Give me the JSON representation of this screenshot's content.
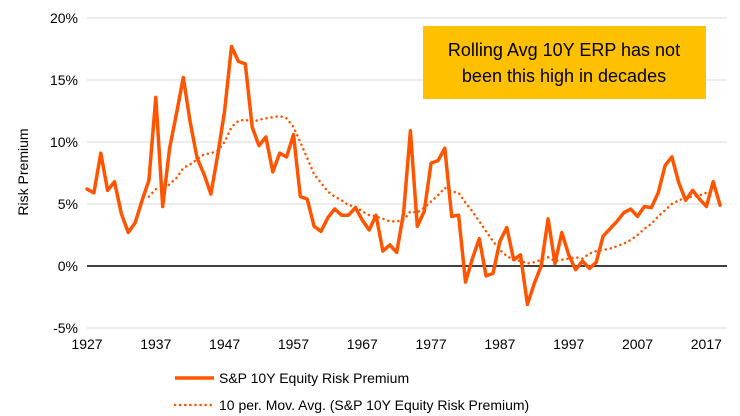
{
  "chart_data": {
    "type": "line",
    "ylabel": "Risk Premium",
    "ylim": [
      -5,
      20
    ],
    "yticks": [
      "20%",
      "15%",
      "10%",
      "5%",
      "0%",
      "-5%"
    ],
    "ytick_values": [
      20,
      15,
      10,
      5,
      0,
      -5
    ],
    "xlim": [
      1927,
      2020
    ],
    "xticks": [
      "1927",
      "1937",
      "1947",
      "1957",
      "1967",
      "1977",
      "1987",
      "1997",
      "2007",
      "2017"
    ],
    "xtick_values": [
      1927,
      1937,
      1947,
      1957,
      1967,
      1977,
      1987,
      1997,
      2007,
      2017
    ],
    "grid": "horizontal",
    "legend_position": "bottom",
    "callout": {
      "lines": [
        "Rolling Avg 10Y ERP has not",
        "been this high in decades"
      ],
      "background": "#FFC000"
    },
    "series": [
      {
        "name": "S&P 10Y Equity Risk Premium",
        "style": "solid",
        "color": "#FF5500",
        "x": [
          1927,
          1928,
          1929,
          1930,
          1931,
          1932,
          1933,
          1934,
          1935,
          1936,
          1937,
          1938,
          1939,
          1940,
          1941,
          1942,
          1943,
          1944,
          1945,
          1946,
          1947,
          1948,
          1949,
          1950,
          1951,
          1952,
          1953,
          1954,
          1955,
          1956,
          1957,
          1958,
          1959,
          1960,
          1961,
          1962,
          1963,
          1964,
          1965,
          1966,
          1967,
          1968,
          1969,
          1970,
          1971,
          1972,
          1973,
          1974,
          1975,
          1976,
          1977,
          1978,
          1979,
          1980,
          1981,
          1982,
          1983,
          1984,
          1985,
          1986,
          1987,
          1988,
          1989,
          1990,
          1991,
          1992,
          1993,
          1994,
          1995,
          1996,
          1997,
          1998,
          1999,
          2000,
          2001,
          2002,
          2003,
          2004,
          2005,
          2006,
          2007,
          2008,
          2009,
          2010,
          2011,
          2012,
          2013,
          2014,
          2015,
          2016,
          2017,
          2018,
          2019
        ],
        "y": [
          6.2,
          5.9,
          9.1,
          6.1,
          6.8,
          4.2,
          2.7,
          3.5,
          5.3,
          6.9,
          13.6,
          4.8,
          9.5,
          12.3,
          15.2,
          11.6,
          8.7,
          7.4,
          5.8,
          9.0,
          12.5,
          17.7,
          16.5,
          16.3,
          11.2,
          9.7,
          10.4,
          7.6,
          9.1,
          8.8,
          10.6,
          5.6,
          5.4,
          3.2,
          2.8,
          3.9,
          4.6,
          4.1,
          4.1,
          4.7,
          3.7,
          2.9,
          4.1,
          1.2,
          1.7,
          1.1,
          4.3,
          10.9,
          3.2,
          4.4,
          8.3,
          8.5,
          9.5,
          4.0,
          4.1,
          -1.3,
          0.6,
          2.2,
          -0.8,
          -0.6,
          2.0,
          3.1,
          0.5,
          0.9,
          -3.1,
          -1.4,
          0.0,
          3.8,
          0.2,
          2.7,
          0.9,
          -0.3,
          0.4,
          -0.2,
          0.3,
          2.4,
          3.0,
          3.6,
          4.3,
          4.6,
          4.0,
          4.8,
          4.7,
          5.9,
          8.1,
          8.8,
          6.7,
          5.3,
          6.1,
          5.4,
          4.8,
          6.8,
          4.9
        ]
      },
      {
        "name": "10 per. Mov. Avg. (S&P 10Y Equity Risk Premium)",
        "style": "dotted",
        "color": "#FF5500",
        "x": [
          1936,
          1937,
          1938,
          1939,
          1940,
          1941,
          1942,
          1943,
          1944,
          1945,
          1946,
          1947,
          1948,
          1949,
          1950,
          1951,
          1952,
          1953,
          1954,
          1955,
          1956,
          1957,
          1958,
          1959,
          1960,
          1961,
          1962,
          1963,
          1964,
          1965,
          1966,
          1967,
          1968,
          1969,
          1970,
          1971,
          1972,
          1973,
          1974,
          1975,
          1976,
          1977,
          1978,
          1979,
          1980,
          1981,
          1982,
          1983,
          1984,
          1985,
          1986,
          1987,
          1988,
          1989,
          1990,
          1991,
          1992,
          1993,
          1994,
          1995,
          1996,
          1997,
          1998,
          1999,
          2000,
          2001,
          2002,
          2003,
          2004,
          2005,
          2006,
          2007,
          2008,
          2009,
          2010,
          2011,
          2012,
          2013,
          2014,
          2015,
          2016,
          2017,
          2018,
          2019
        ],
        "y": [
          5.6,
          6.2,
          6.1,
          6.6,
          7.1,
          7.9,
          8.2,
          8.6,
          9.0,
          9.1,
          9.3,
          10.0,
          11.2,
          11.7,
          11.8,
          11.6,
          11.8,
          11.9,
          12.0,
          12.1,
          11.9,
          11.2,
          10.0,
          8.7,
          7.4,
          6.7,
          6.0,
          5.6,
          5.3,
          4.9,
          4.8,
          4.4,
          4.1,
          4.0,
          3.8,
          3.6,
          3.6,
          3.7,
          4.4,
          4.3,
          4.7,
          5.2,
          5.7,
          6.3,
          6.0,
          5.9,
          5.1,
          4.4,
          3.6,
          2.8,
          2.0,
          1.3,
          0.8,
          0.5,
          0.4,
          0.2,
          0.3,
          0.5,
          0.7,
          0.4,
          0.5,
          0.6,
          0.7,
          0.6,
          1.0,
          1.2,
          1.3,
          1.4,
          1.6,
          1.8,
          2.1,
          2.5,
          3.0,
          3.4,
          4.0,
          4.5,
          5.0,
          5.3,
          5.5,
          5.6,
          5.7,
          5.9,
          6.1,
          6.2
        ]
      }
    ]
  }
}
